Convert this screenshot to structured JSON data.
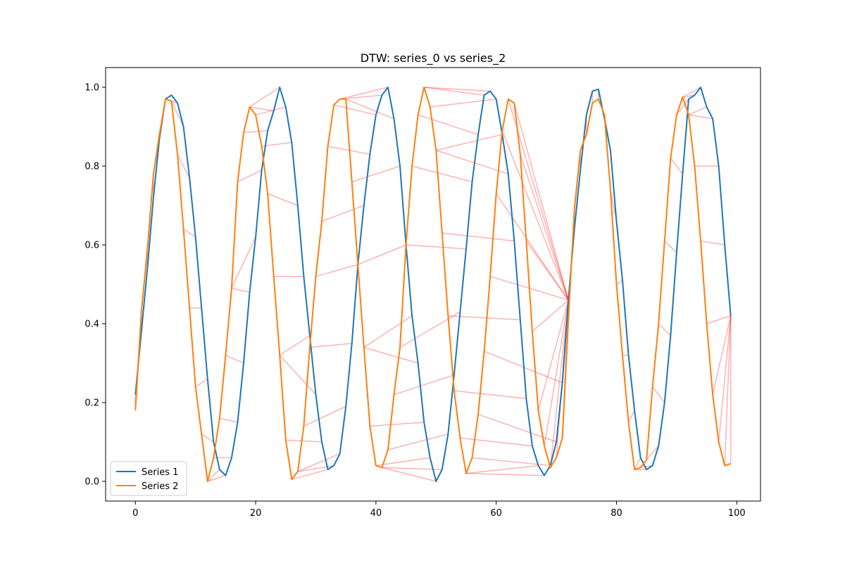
{
  "chart_data": {
    "type": "line",
    "title": "DTW: series_0 vs series_2",
    "xlabel": "",
    "ylabel": "",
    "xlim": [
      -4.95,
      103.95
    ],
    "ylim": [
      -0.05,
      1.05
    ],
    "x_ticks": [
      0,
      20,
      40,
      60,
      80,
      100
    ],
    "y_ticks": [
      0.0,
      0.2,
      0.4,
      0.6,
      0.8,
      1.0
    ],
    "x_tick_labels": [
      "0",
      "20",
      "40",
      "60",
      "80",
      "100"
    ],
    "y_tick_labels": [
      "0.0",
      "0.2",
      "0.4",
      "0.6",
      "0.8",
      "1.0"
    ],
    "grid": false,
    "legend_position": "lower-left",
    "colors": {
      "series1": "#1f77b4",
      "series2": "#ff7f0e",
      "alignment": "#ff0000"
    },
    "series": [
      {
        "name": "Series 1",
        "x": [
          0,
          1,
          2,
          3,
          4,
          5,
          6,
          7,
          8,
          9,
          10,
          11,
          12,
          13,
          14,
          15,
          16,
          17,
          18,
          19,
          20,
          21,
          22,
          23,
          24,
          25,
          26,
          27,
          28,
          29,
          30,
          31,
          32,
          33,
          34,
          35,
          36,
          37,
          38,
          39,
          40,
          41,
          42,
          43,
          44,
          45,
          46,
          47,
          48,
          49,
          50,
          51,
          52,
          53,
          54,
          55,
          56,
          57,
          58,
          59,
          60,
          61,
          62,
          63,
          64,
          65,
          66,
          67,
          68,
          69,
          70,
          71,
          72,
          73,
          74,
          75,
          76,
          77,
          78,
          79,
          80,
          81,
          82,
          83,
          84,
          85,
          86,
          87,
          88,
          89,
          90,
          91,
          92,
          93,
          94,
          95,
          96,
          97,
          98,
          99
        ],
        "values": [
          0.22,
          0.38,
          0.54,
          0.72,
          0.87,
          0.97,
          0.98,
          0.96,
          0.9,
          0.77,
          0.62,
          0.44,
          0.26,
          0.1,
          0.03,
          0.015,
          0.06,
          0.15,
          0.3,
          0.48,
          0.62,
          0.79,
          0.89,
          0.94,
          1.0,
          0.95,
          0.86,
          0.7,
          0.52,
          0.37,
          0.22,
          0.1,
          0.03,
          0.04,
          0.07,
          0.19,
          0.35,
          0.55,
          0.7,
          0.83,
          0.93,
          0.98,
          1.0,
          0.92,
          0.8,
          0.6,
          0.42,
          0.3,
          0.15,
          0.06,
          0.0,
          0.03,
          0.12,
          0.27,
          0.43,
          0.59,
          0.76,
          0.88,
          0.98,
          0.99,
          0.97,
          0.88,
          0.78,
          0.61,
          0.41,
          0.21,
          0.09,
          0.04,
          0.015,
          0.04,
          0.1,
          0.25,
          0.46,
          0.64,
          0.79,
          0.93,
          0.99,
          0.995,
          0.92,
          0.84,
          0.66,
          0.51,
          0.32,
          0.18,
          0.06,
          0.03,
          0.04,
          0.09,
          0.2,
          0.37,
          0.58,
          0.78,
          0.97,
          0.98,
          1.0,
          0.95,
          0.92,
          0.8,
          0.6,
          0.42
        ]
      },
      {
        "name": "Series 2",
        "x": [
          0,
          1,
          2,
          3,
          4,
          5,
          6,
          7,
          8,
          9,
          10,
          11,
          12,
          13,
          14,
          15,
          16,
          17,
          18,
          19,
          20,
          21,
          22,
          23,
          24,
          25,
          26,
          27,
          28,
          29,
          30,
          31,
          32,
          33,
          34,
          35,
          36,
          37,
          38,
          39,
          40,
          41,
          42,
          43,
          44,
          45,
          46,
          47,
          48,
          49,
          50,
          51,
          52,
          53,
          54,
          55,
          56,
          57,
          58,
          59,
          60,
          61,
          62,
          63,
          64,
          65,
          66,
          67,
          68,
          69,
          70,
          71,
          72,
          73,
          74,
          75,
          76,
          77,
          78,
          79,
          80,
          81,
          82,
          83,
          84,
          85,
          86,
          87,
          88,
          89,
          90,
          91,
          92,
          93,
          94,
          95,
          96,
          97,
          98,
          99
        ],
        "values": [
          0.18,
          0.43,
          0.59,
          0.78,
          0.88,
          0.97,
          0.965,
          0.83,
          0.64,
          0.44,
          0.24,
          0.12,
          0.0,
          0.06,
          0.16,
          0.32,
          0.49,
          0.76,
          0.885,
          0.95,
          0.93,
          0.85,
          0.73,
          0.52,
          0.32,
          0.105,
          0.005,
          0.025,
          0.14,
          0.34,
          0.52,
          0.66,
          0.85,
          0.955,
          0.97,
          0.97,
          0.76,
          0.55,
          0.34,
          0.14,
          0.04,
          0.035,
          0.08,
          0.22,
          0.34,
          0.6,
          0.8,
          0.93,
          1.0,
          0.95,
          0.84,
          0.63,
          0.42,
          0.23,
          0.11,
          0.02,
          0.06,
          0.17,
          0.33,
          0.52,
          0.73,
          0.89,
          0.97,
          0.96,
          0.83,
          0.61,
          0.38,
          0.18,
          0.09,
          0.035,
          0.06,
          0.11,
          0.41,
          0.69,
          0.84,
          0.88,
          0.96,
          0.97,
          0.93,
          0.74,
          0.5,
          0.32,
          0.15,
          0.03,
          0.035,
          0.055,
          0.24,
          0.4,
          0.61,
          0.82,
          0.93,
          0.975,
          0.93,
          0.8,
          0.61,
          0.4,
          0.22,
          0.1,
          0.04,
          0.045
        ]
      }
    ]
  }
}
